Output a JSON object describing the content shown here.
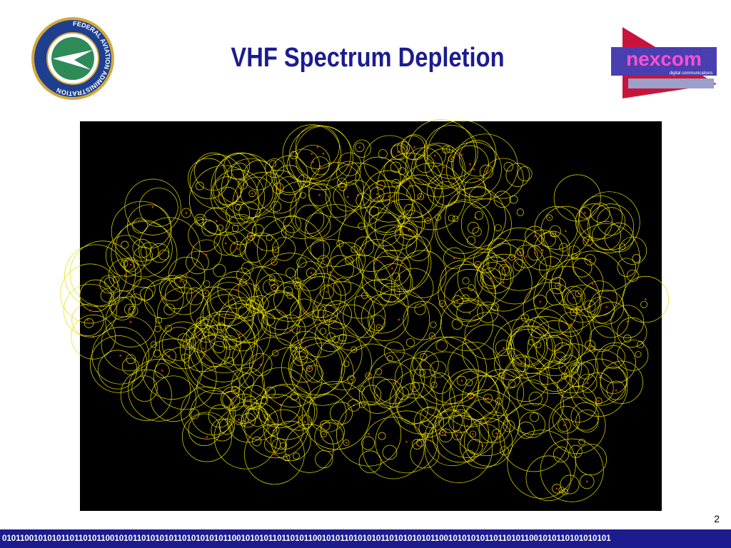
{
  "header": {
    "title": "VHF Spectrum Depletion",
    "left_logo": {
      "ring_text": "FEDERAL AVIATION ADMINISTRATION"
    },
    "right_logo": {
      "name": "nexcom",
      "tagline": "digital communications"
    }
  },
  "footer": {
    "page_number": "2",
    "binary_strip": "010110010101011011010110010101101010101101010101011001010101101101011001010110101010110101010101100101010101101101011001010110101010101"
  }
}
